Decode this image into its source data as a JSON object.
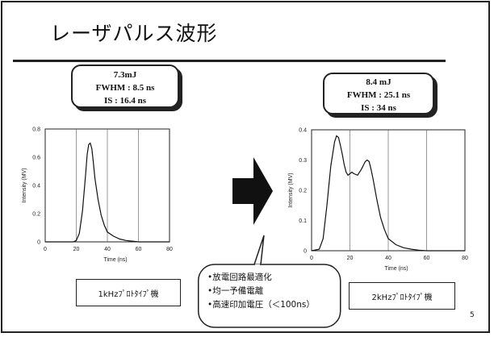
{
  "page": {
    "title": "レーザパルス波形",
    "page_number": "5"
  },
  "left": {
    "spec_lines": [
      "7.3mJ",
      "FWHM : 8.5 ns",
      "IS : 16.4 ns"
    ],
    "caption": "1kHzﾌﾟﾛﾄﾀｲﾌﾟ機"
  },
  "right": {
    "spec_lines": [
      "8.4 mJ",
      "FWHM : 25.1 ns",
      "IS : 34 ns"
    ],
    "caption": "2kHzﾌﾟﾛﾄﾀｲﾌﾟ機"
  },
  "callout": {
    "lines": [
      "•放電回路最適化",
      "•均一予備電離",
      "•高速印加電圧（＜100ns）"
    ]
  },
  "colors": {
    "ink": "#222222",
    "background": "#ffffff"
  },
  "arrow_icon": "right-arrow",
  "chart_data": [
    {
      "type": "line",
      "xlabel": "Time (ns)",
      "ylabel": "Intensity (MV)",
      "xlim": [
        0,
        80
      ],
      "ylim": [
        0,
        0.8
      ],
      "x_ticks": [
        "0",
        "20",
        "40",
        "60",
        "80"
      ],
      "y_ticks": [
        "0",
        "0.2",
        "0.4",
        "0.6",
        "0.8"
      ],
      "grid": "vertical",
      "series": [
        {
          "x": [
            0,
            18,
            20,
            22,
            24,
            26,
            27,
            28,
            29,
            30,
            31,
            32,
            34,
            36,
            38,
            40,
            44,
            48,
            52,
            56,
            60,
            80
          ],
          "y": [
            0,
            0,
            0.01,
            0.06,
            0.22,
            0.48,
            0.62,
            0.69,
            0.7,
            0.66,
            0.56,
            0.45,
            0.3,
            0.19,
            0.12,
            0.07,
            0.04,
            0.02,
            0.01,
            0.005,
            0,
            0
          ]
        }
      ]
    },
    {
      "type": "line",
      "xlabel": "Time (ns)",
      "ylabel": "Intensity (MV)",
      "xlim": [
        0,
        80
      ],
      "ylim": [
        0,
        0.4
      ],
      "x_ticks": [
        "0",
        "20",
        "40",
        "60",
        "80"
      ],
      "y_ticks": [
        "0",
        "0.1",
        "0.2",
        "0.3",
        "0.4"
      ],
      "grid": "vertical",
      "series": [
        {
          "x": [
            0,
            4,
            6,
            8,
            10,
            12,
            13,
            14,
            15,
            16,
            17,
            18,
            19,
            20,
            21,
            22,
            24,
            26,
            28,
            29,
            30,
            31,
            32,
            34,
            36,
            38,
            40,
            44,
            48,
            52,
            56,
            60,
            80
          ],
          "y": [
            0,
            0.005,
            0.04,
            0.15,
            0.28,
            0.36,
            0.38,
            0.375,
            0.35,
            0.32,
            0.285,
            0.26,
            0.25,
            0.255,
            0.26,
            0.255,
            0.25,
            0.27,
            0.295,
            0.3,
            0.295,
            0.27,
            0.24,
            0.17,
            0.11,
            0.07,
            0.04,
            0.02,
            0.01,
            0.005,
            0.002,
            0,
            0
          ]
        }
      ]
    }
  ]
}
